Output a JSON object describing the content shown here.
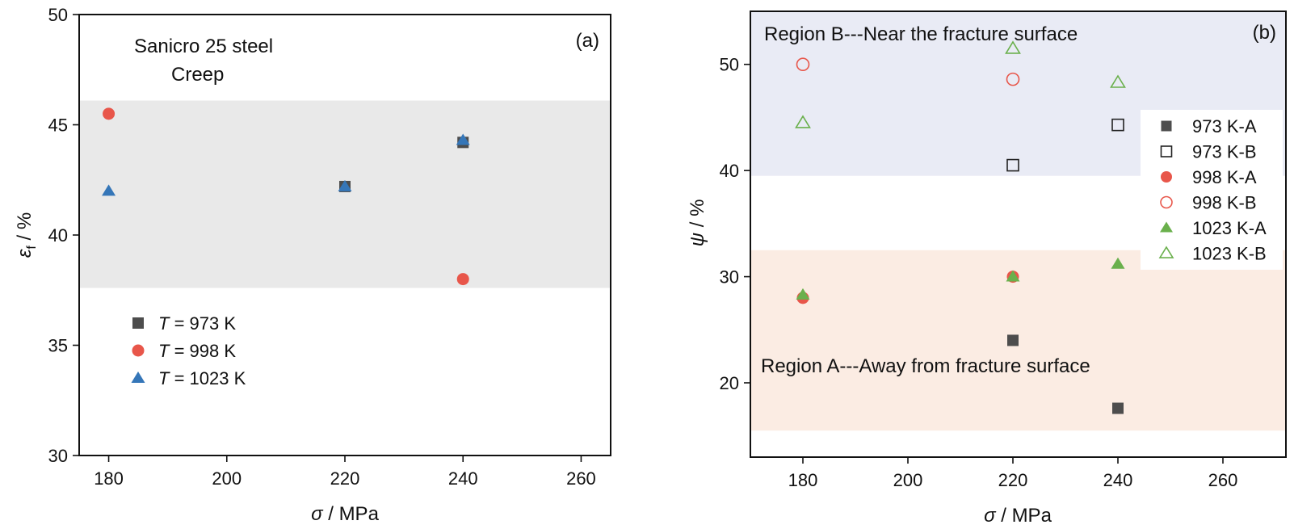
{
  "chart_data": [
    {
      "type": "scatter",
      "panel_label": "(a)",
      "annotations": [
        "Sanicro 25 steel",
        "Creep"
      ],
      "xlabel": {
        "symbol": "σ",
        "unit": " / MPa"
      },
      "ylabel": {
        "symbol": "ε",
        "subscript": "f",
        "unit": " / %"
      },
      "xlim": [
        175,
        265
      ],
      "ylim": [
        30,
        50
      ],
      "xticks": [
        180,
        200,
        220,
        240,
        260
      ],
      "yticks": [
        30,
        35,
        40,
        45,
        50
      ],
      "band": {
        "y0": 37.6,
        "y1": 46.1,
        "color": "#e9e9e9"
      },
      "legend_position": "lower-left",
      "series": [
        {
          "name": "T = 973 K",
          "legend_symbol": "T",
          "legend_rest": " = 973 K",
          "marker": "square-filled",
          "color": "#4d4d4d",
          "x": [
            220,
            240
          ],
          "y": [
            42.2,
            44.2
          ]
        },
        {
          "name": "T = 998 K",
          "legend_symbol": "T",
          "legend_rest": " = 998 K",
          "marker": "circle-filled",
          "color": "#e8564a",
          "x": [
            180,
            240
          ],
          "y": [
            45.5,
            38.0
          ]
        },
        {
          "name": "T = 1023 K",
          "legend_symbol": "T",
          "legend_rest": " = 1023 K",
          "marker": "triangle-filled",
          "color": "#3576b8",
          "x": [
            180,
            220,
            240
          ],
          "y": [
            42.0,
            42.2,
            44.3
          ]
        }
      ]
    },
    {
      "type": "scatter",
      "panel_label": "(b)",
      "xlabel": {
        "symbol": "σ",
        "unit": " / MPa"
      },
      "ylabel": {
        "symbol": "ψ",
        "unit": " / %"
      },
      "xlim": [
        170,
        272
      ],
      "ylim": [
        13,
        55
      ],
      "xticks": [
        180,
        200,
        220,
        240,
        260
      ],
      "yticks": [
        20,
        30,
        40,
        50
      ],
      "regions": [
        {
          "label": "Region B---Near the fracture surface",
          "y0": 39.5,
          "y1": 55,
          "color": "#e9ebf5"
        },
        {
          "label": "Region A---Away from fracture surface",
          "y0": 15.5,
          "y1": 32.5,
          "color": "#fbece3"
        }
      ],
      "legend_position": "right",
      "series": [
        {
          "name": "973 K-A",
          "marker": "square-filled",
          "color": "#4d4d4d",
          "x": [
            220,
            240
          ],
          "y": [
            24.0,
            17.6
          ]
        },
        {
          "name": "973 K-B",
          "marker": "square-open",
          "color": "#222222",
          "x": [
            220,
            240
          ],
          "y": [
            40.5,
            44.3
          ]
        },
        {
          "name": "998 K-A",
          "marker": "circle-filled",
          "color": "#e8564a",
          "x": [
            180,
            220
          ],
          "y": [
            28.0,
            30.0
          ]
        },
        {
          "name": "998 K-B",
          "marker": "circle-open",
          "color": "#e8564a",
          "x": [
            180,
            220
          ],
          "y": [
            50.0,
            48.6
          ]
        },
        {
          "name": "1023 K-A",
          "marker": "triangle-filled",
          "color": "#6ab04c",
          "x": [
            180,
            220,
            240
          ],
          "y": [
            28.3,
            30.0,
            31.2
          ]
        },
        {
          "name": "1023 K-B",
          "marker": "triangle-open",
          "color": "#6ab04c",
          "x": [
            180,
            220,
            240
          ],
          "y": [
            44.5,
            51.5,
            48.3
          ]
        }
      ]
    }
  ]
}
